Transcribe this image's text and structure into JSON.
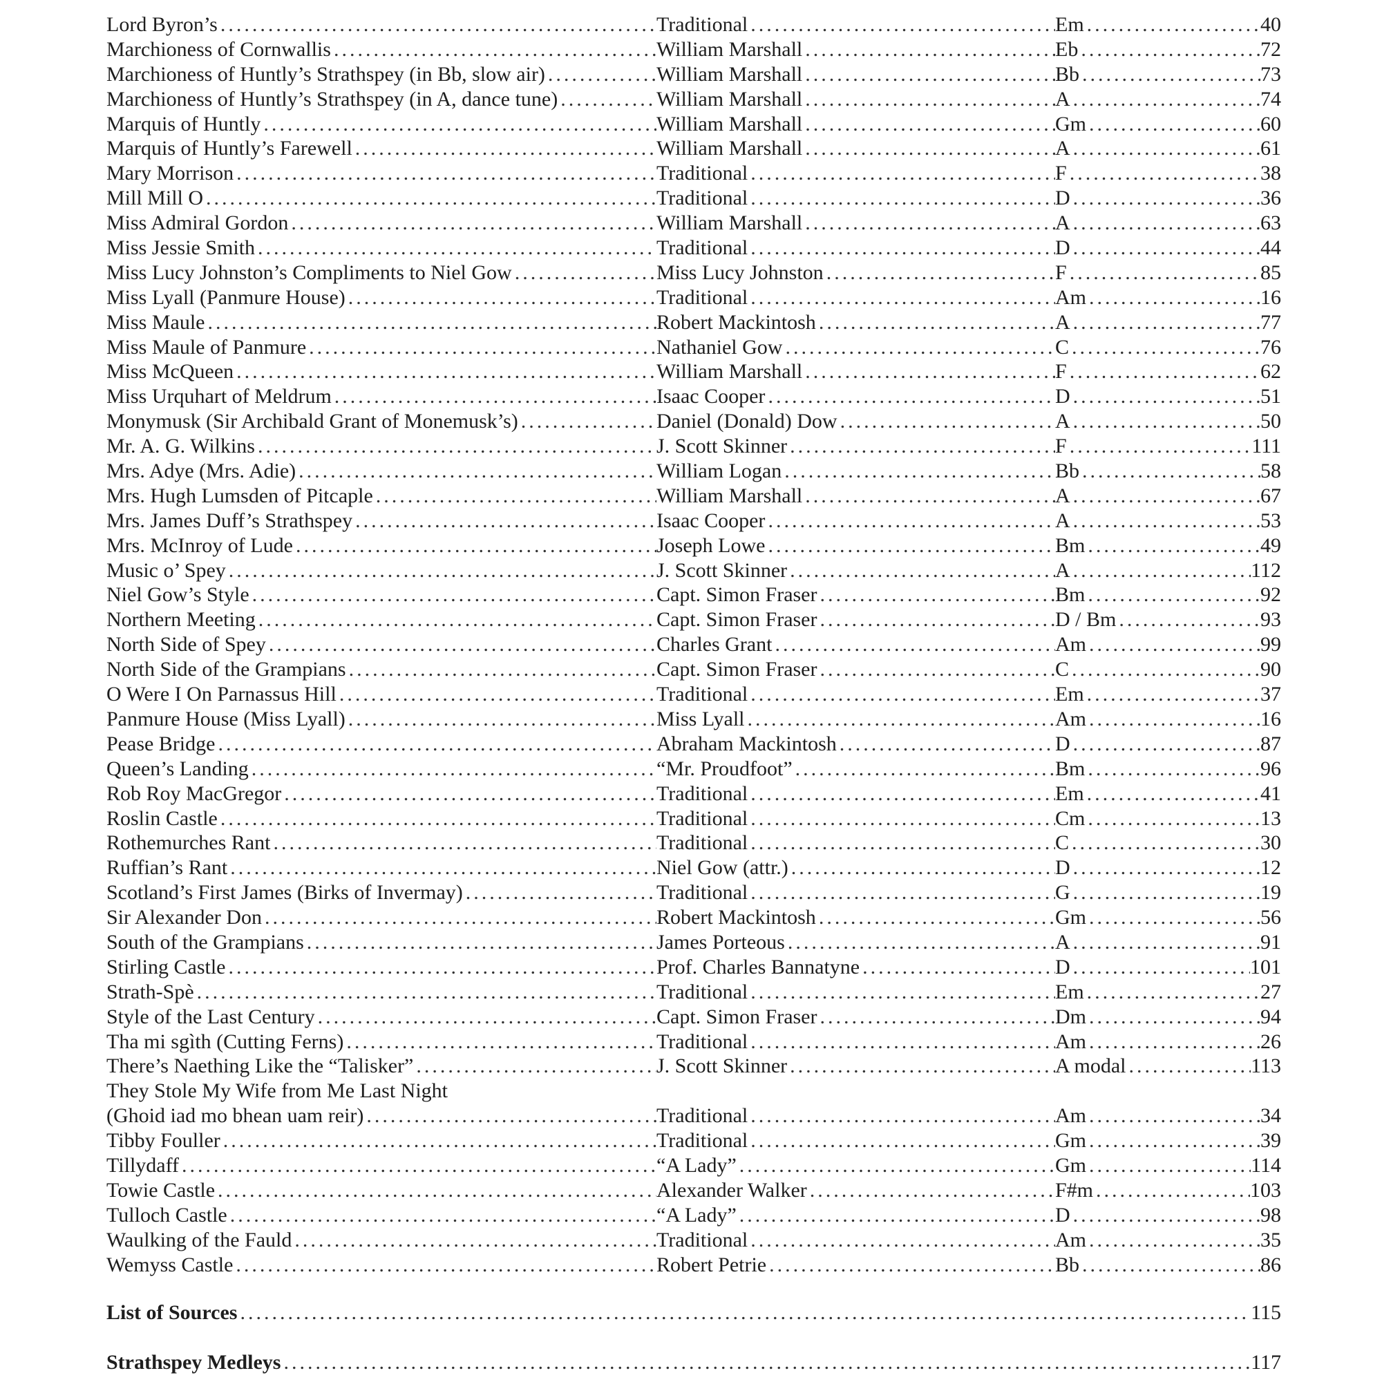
{
  "entries": [
    {
      "title": "Lord Byron’s",
      "composer": "Traditional",
      "key": "Em",
      "page": "40"
    },
    {
      "title": "Marchioness of Cornwallis",
      "composer": "William Marshall",
      "key": "Eb",
      "page": "72"
    },
    {
      "title": "Marchioness of Huntly’s Strathspey (in Bb, slow air)",
      "composer": "William Marshall",
      "key": "Bb",
      "page": "73"
    },
    {
      "title": "Marchioness of Huntly’s Strathspey (in A, dance tune)",
      "composer": "William Marshall",
      "key": "A",
      "page": "74"
    },
    {
      "title": "Marquis of Huntly",
      "composer": "William Marshall",
      "key": "Gm",
      "page": "60"
    },
    {
      "title": "Marquis of Huntly’s Farewell",
      "composer": "William Marshall",
      "key": "A",
      "page": "61"
    },
    {
      "title": "Mary Morrison",
      "composer": "Traditional",
      "key": "F",
      "page": "38"
    },
    {
      "title": "Mill Mill O",
      "composer": "Traditional",
      "key": "D",
      "page": "36"
    },
    {
      "title": "Miss Admiral Gordon",
      "composer": "William Marshall",
      "key": "A",
      "page": "63"
    },
    {
      "title": "Miss Jessie Smith",
      "composer": "Traditional",
      "key": "D",
      "page": "44"
    },
    {
      "title": "Miss Lucy Johnston’s Compliments to Niel Gow",
      "composer": "Miss Lucy Johnston",
      "key": "F",
      "page": "85"
    },
    {
      "title": "Miss Lyall (Panmure House)",
      "composer": "Traditional",
      "key": "Am",
      "page": "16"
    },
    {
      "title": "Miss Maule",
      "composer": "Robert Mackintosh",
      "key": "A",
      "page": "77"
    },
    {
      "title": "Miss Maule of Panmure",
      "composer": "Nathaniel Gow",
      "key": "C",
      "page": "76"
    },
    {
      "title": "Miss McQueen",
      "composer": "William Marshall",
      "key": "F",
      "page": "62"
    },
    {
      "title": "Miss Urquhart of Meldrum",
      "composer": "Isaac Cooper",
      "key": "D",
      "page": "51"
    },
    {
      "title": "Monymusk (Sir Archibald Grant of Monemusk’s)",
      "composer": "Daniel (Donald) Dow",
      "key": "A",
      "page": "50"
    },
    {
      "title": "Mr. A. G. Wilkins",
      "composer": "J. Scott Skinner",
      "key": "F",
      "page": "111"
    },
    {
      "title": "Mrs. Adye (Mrs. Adie)",
      "composer": "William Logan",
      "key": "Bb",
      "page": "58"
    },
    {
      "title": "Mrs. Hugh Lumsden of Pitcaple",
      "composer": "William Marshall",
      "key": "A",
      "page": "67"
    },
    {
      "title": "Mrs. James Duff’s Strathspey",
      "composer": "Isaac Cooper",
      "key": "A",
      "page": "53"
    },
    {
      "title": "Mrs. McInroy of Lude",
      "composer": "Joseph Lowe",
      "key": "Bm",
      "page": "49"
    },
    {
      "title": "Music o’ Spey",
      "composer": "J. Scott Skinner",
      "key": "A",
      "page": "112"
    },
    {
      "title": "Niel Gow’s Style",
      "composer": "Capt. Simon Fraser",
      "key": "Bm",
      "page": "92"
    },
    {
      "title": "Northern Meeting",
      "composer": "Capt. Simon Fraser",
      "key": "D / Bm",
      "page": "93"
    },
    {
      "title": "North Side of Spey",
      "composer": "Charles Grant",
      "key": "Am",
      "page": "99"
    },
    {
      "title": "North Side of the Grampians",
      "composer": "Capt. Simon Fraser",
      "key": "C",
      "page": "90"
    },
    {
      "title": "O Were I On Parnassus Hill",
      "composer": "Traditional",
      "key": "Em",
      "page": "37"
    },
    {
      "title": "Panmure House (Miss Lyall)",
      "composer": "Miss Lyall",
      "key": "Am",
      "page": "16"
    },
    {
      "title": "Pease Bridge",
      "composer": "Abraham Mackintosh",
      "key": "D",
      "page": "87"
    },
    {
      "title": "Queen’s Landing",
      "composer": "“Mr. Proudfoot”",
      "key": "Bm",
      "page": "96"
    },
    {
      "title": "Rob Roy MacGregor",
      "composer": "Traditional",
      "key": "Em",
      "page": "41"
    },
    {
      "title": "Roslin Castle",
      "composer": "Traditional",
      "key": "Cm",
      "page": "13"
    },
    {
      "title": "Rothemurches Rant",
      "composer": "Traditional",
      "key": "C",
      "page": "30"
    },
    {
      "title": "Ruffian’s Rant",
      "composer": "Niel Gow (attr.)",
      "key": "D",
      "page": "12"
    },
    {
      "title": "Scotland’s First James (Birks of Invermay)",
      "composer": "Traditional",
      "key": "G",
      "page": "19"
    },
    {
      "title": "Sir Alexander Don",
      "composer": "Robert Mackintosh",
      "key": "Gm",
      "page": "56"
    },
    {
      "title": "South of the Grampians",
      "composer": "James Porteous",
      "key": "A",
      "page": "91"
    },
    {
      "title": "Stirling Castle",
      "composer": "Prof. Charles Bannatyne",
      "key": "D",
      "page": "101"
    },
    {
      "title": "Strath-Spè",
      "composer": "Traditional",
      "key": "Em",
      "page": "27"
    },
    {
      "title": "Style of the Last Century",
      "composer": "Capt. Simon Fraser",
      "key": "Dm",
      "page": "94"
    },
    {
      "title": "Tha mi sgìth (Cutting Ferns)",
      "composer": "Traditional",
      "key": "Am",
      "page": "26"
    },
    {
      "title": "There’s Naething Like the “Talisker”",
      "composer": "J. Scott Skinner",
      "key": "A modal",
      "page": "113"
    },
    {
      "title": "They Stole My Wife from Me Last Night",
      "title_line2": "(Ghoid iad mo bhean uam reir)",
      "composer": "Traditional",
      "key": "Am",
      "page": "34"
    },
    {
      "title": "Tibby Fouller",
      "composer": "Traditional",
      "key": "Gm",
      "page": "39"
    },
    {
      "title": "Tillydaff",
      "composer": "“A Lady”",
      "key": "Gm",
      "page": "114"
    },
    {
      "title": "Towie Castle",
      "composer": "Alexander Walker",
      "key": "F#m",
      "page": "103"
    },
    {
      "title": "Tulloch Castle",
      "composer": "“A Lady”",
      "key": "D",
      "page": "98"
    },
    {
      "title": "Waulking of the Fauld",
      "composer": "Traditional",
      "key": "Am",
      "page": "35"
    },
    {
      "title": "Wemyss Castle",
      "composer": "Robert Petrie",
      "key": "Bb",
      "page": "86"
    }
  ],
  "sections": [
    {
      "label": "List of Sources",
      "page": "115"
    },
    {
      "label": "Strathspey Medleys",
      "page": "117"
    }
  ]
}
